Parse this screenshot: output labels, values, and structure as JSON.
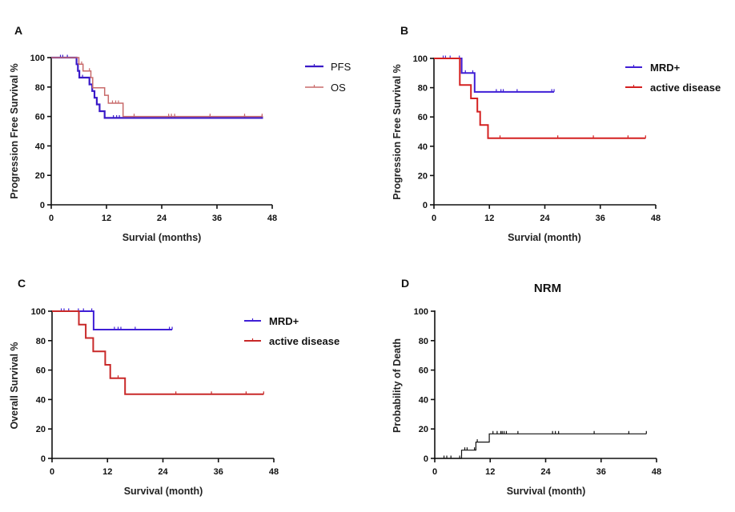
{
  "chart_data": [
    {
      "panel": "A",
      "type": "line",
      "step": true,
      "title": "",
      "xlabel": "Survial (months)",
      "ylabel": "Progression Free Survival %",
      "xlim": [
        0,
        48
      ],
      "ylim": [
        0,
        100
      ],
      "xticks": [
        0,
        12,
        24,
        36,
        48
      ],
      "yticks": [
        0,
        20,
        40,
        60,
        80,
        100
      ],
      "legend_position": "top-right",
      "series": [
        {
          "name": "PFS",
          "color": "#3a1ac8",
          "steps": [
            [
              0,
              100
            ],
            [
              5.5,
              100
            ],
            [
              5.5,
              95.5
            ],
            [
              5.8,
              95.5
            ],
            [
              5.8,
              91
            ],
            [
              6.1,
              91
            ],
            [
              6.1,
              86.4
            ],
            [
              8.3,
              86.4
            ],
            [
              8.3,
              81.8
            ],
            [
              8.9,
              81.8
            ],
            [
              8.9,
              77.3
            ],
            [
              9.4,
              77.3
            ],
            [
              9.4,
              72.7
            ],
            [
              9.9,
              72.7
            ],
            [
              9.9,
              68.2
            ],
            [
              10.5,
              68.2
            ],
            [
              10.5,
              63.6
            ],
            [
              11.6,
              63.6
            ],
            [
              11.6,
              59
            ],
            [
              46,
              59
            ]
          ],
          "censors": [
            [
              2,
              100
            ],
            [
              2.5,
              100
            ],
            [
              3.5,
              100
            ],
            [
              6.8,
              86.4
            ],
            [
              13.5,
              59
            ],
            [
              14.2,
              59
            ],
            [
              14.8,
              59
            ],
            [
              18,
              59
            ],
            [
              25.5,
              59
            ],
            [
              26.1,
              59
            ],
            [
              26.8,
              59
            ],
            [
              34.5,
              59
            ],
            [
              42,
              59
            ],
            [
              45.8,
              59
            ]
          ]
        },
        {
          "name": "OS",
          "color": "#c86a6a",
          "steps": [
            [
              0,
              100
            ],
            [
              6,
              100
            ],
            [
              6,
              95.5
            ],
            [
              6.9,
              95.5
            ],
            [
              6.9,
              90.9
            ],
            [
              8.6,
              90.9
            ],
            [
              8.6,
              86.4
            ],
            [
              9,
              86.4
            ],
            [
              9,
              79.5
            ],
            [
              11.6,
              79.5
            ],
            [
              11.6,
              74.4
            ],
            [
              12.4,
              74.4
            ],
            [
              12.4,
              69
            ],
            [
              15.6,
              69
            ],
            [
              15.6,
              60
            ],
            [
              46,
              60
            ]
          ],
          "censors": [
            [
              6.6,
              95.5
            ],
            [
              8.3,
              90.9
            ],
            [
              13.3,
              69
            ],
            [
              14,
              69
            ],
            [
              14.6,
              69
            ],
            [
              18,
              60
            ],
            [
              25.5,
              60
            ],
            [
              26.1,
              60
            ],
            [
              26.8,
              60
            ],
            [
              34.5,
              60
            ],
            [
              42,
              60
            ],
            [
              45.8,
              60
            ]
          ]
        }
      ]
    },
    {
      "panel": "B",
      "type": "line",
      "step": true,
      "title": "",
      "xlabel": "Survial (month)",
      "ylabel": "Progression Free Survival %",
      "xlim": [
        0,
        48
      ],
      "ylim": [
        0,
        100
      ],
      "xticks": [
        0,
        12,
        24,
        36,
        48
      ],
      "yticks": [
        0,
        20,
        40,
        60,
        80,
        100
      ],
      "legend_position": "top-right",
      "series": [
        {
          "name": "MRD+",
          "color": "#3f1fd6",
          "steps": [
            [
              0,
              100
            ],
            [
              6,
              100
            ],
            [
              6,
              90
            ],
            [
              8.8,
              90
            ],
            [
              8.8,
              77.1
            ],
            [
              26,
              77.1
            ]
          ],
          "censors": [
            [
              2,
              100
            ],
            [
              2.5,
              100
            ],
            [
              3.5,
              100
            ],
            [
              5.5,
              100
            ],
            [
              6.8,
              90
            ],
            [
              8.4,
              90
            ],
            [
              13.5,
              77.1
            ],
            [
              14.5,
              77.1
            ],
            [
              15,
              77.1
            ],
            [
              18,
              77.1
            ],
            [
              25.5,
              77.1
            ],
            [
              26,
              77.1
            ]
          ]
        },
        {
          "name": "active disease",
          "color": "#d42020",
          "steps": [
            [
              0,
              100
            ],
            [
              5.6,
              100
            ],
            [
              5.6,
              81.8
            ],
            [
              8,
              81.8
            ],
            [
              8,
              72.7
            ],
            [
              9.4,
              72.7
            ],
            [
              9.4,
              63.6
            ],
            [
              10,
              63.6
            ],
            [
              10,
              54.5
            ],
            [
              11.7,
              54.5
            ],
            [
              11.7,
              45.5
            ],
            [
              45.8,
              45.5
            ]
          ],
          "censors": [
            [
              14.3,
              45.5
            ],
            [
              26.8,
              45.5
            ],
            [
              34.5,
              45.5
            ],
            [
              42,
              45.5
            ],
            [
              45.8,
              45.5
            ]
          ]
        }
      ]
    },
    {
      "panel": "C",
      "type": "line",
      "step": true,
      "title": "",
      "xlabel": "Survival (month)",
      "ylabel": "Overall Survival %",
      "xlim": [
        0,
        48
      ],
      "ylim": [
        0,
        100
      ],
      "xticks": [
        0,
        12,
        24,
        36,
        48
      ],
      "yticks": [
        0,
        20,
        40,
        60,
        80,
        100
      ],
      "legend_position": "top-right",
      "series": [
        {
          "name": "MRD+",
          "color": "#3f1fd6",
          "steps": [
            [
              0,
              100
            ],
            [
              9,
              100
            ],
            [
              9,
              87.5
            ],
            [
              26,
              87.5
            ]
          ],
          "censors": [
            [
              2,
              100
            ],
            [
              2.6,
              100
            ],
            [
              3.6,
              100
            ],
            [
              5.7,
              100
            ],
            [
              6.8,
              100
            ],
            [
              8.6,
              100
            ],
            [
              13.5,
              87.5
            ],
            [
              14.3,
              87.5
            ],
            [
              14.9,
              87.5
            ],
            [
              18,
              87.5
            ],
            [
              25.4,
              87.5
            ],
            [
              26,
              87.5
            ]
          ]
        },
        {
          "name": "active disease",
          "color": "#c82828",
          "steps": [
            [
              0,
              100
            ],
            [
              5.8,
              100
            ],
            [
              5.8,
              90.9
            ],
            [
              7.3,
              90.9
            ],
            [
              7.3,
              81.8
            ],
            [
              8.9,
              81.8
            ],
            [
              8.9,
              72.7
            ],
            [
              11.5,
              72.7
            ],
            [
              11.5,
              63.6
            ],
            [
              12.6,
              63.6
            ],
            [
              12.6,
              54.5
            ],
            [
              15.8,
              54.5
            ],
            [
              15.8,
              43.6
            ],
            [
              45.8,
              43.6
            ]
          ],
          "censors": [
            [
              14.3,
              54.5
            ],
            [
              26.8,
              43.6
            ],
            [
              34.5,
              43.6
            ],
            [
              42,
              43.6
            ],
            [
              45.8,
              43.6
            ]
          ]
        }
      ]
    },
    {
      "panel": "D",
      "type": "line",
      "step": true,
      "title": "NRM",
      "xlabel": "Survival (month)",
      "ylabel": "Probability of Death",
      "xlim": [
        0,
        48
      ],
      "ylim": [
        0,
        100
      ],
      "xticks": [
        0,
        12,
        24,
        36,
        48
      ],
      "yticks": [
        0,
        20,
        40,
        60,
        80,
        100
      ],
      "legend_position": "none",
      "series": [
        {
          "name": "NRM",
          "color": "#111111",
          "steps": [
            [
              0,
              0
            ],
            [
              5.8,
              0
            ],
            [
              5.8,
              5.6
            ],
            [
              8.9,
              5.6
            ],
            [
              8.9,
              11.1
            ],
            [
              11.8,
              11.1
            ],
            [
              11.8,
              16.7
            ],
            [
              45.8,
              16.7
            ]
          ],
          "censors": [
            [
              2,
              0
            ],
            [
              2.6,
              0
            ],
            [
              3.5,
              0
            ],
            [
              5.4,
              0
            ],
            [
              6.5,
              5.6
            ],
            [
              7,
              5.6
            ],
            [
              8.6,
              5.6
            ],
            [
              9.2,
              11.1
            ],
            [
              12.6,
              16.7
            ],
            [
              13.5,
              16.7
            ],
            [
              14.3,
              16.7
            ],
            [
              14.6,
              16.7
            ],
            [
              15,
              16.7
            ],
            [
              15.5,
              16.7
            ],
            [
              18,
              16.7
            ],
            [
              25.5,
              16.7
            ],
            [
              26.1,
              16.7
            ],
            [
              26.8,
              16.7
            ],
            [
              34.5,
              16.7
            ],
            [
              42,
              16.7
            ],
            [
              45.8,
              16.7
            ]
          ]
        }
      ]
    }
  ]
}
